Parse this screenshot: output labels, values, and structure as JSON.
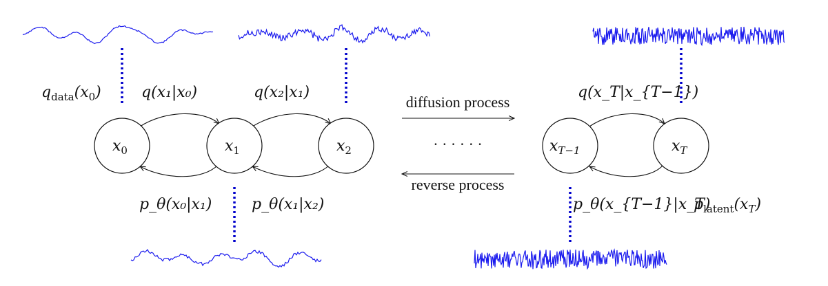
{
  "nodes": {
    "x0": {
      "base": "x",
      "sub": "0"
    },
    "x1": {
      "base": "x",
      "sub": "1"
    },
    "x2": {
      "base": "x",
      "sub": "2"
    },
    "xT1": {
      "base": "x",
      "sub": "T−1"
    },
    "xT": {
      "base": "x",
      "sub": "T"
    }
  },
  "labels": {
    "q_data": {
      "fn": "q",
      "sub": "data",
      "arg": "(x",
      "argsub": "0",
      "close": ")"
    },
    "q_x1_x0": "q(x₁|x₀)",
    "q_x2_x1": "q(x₂|x₁)",
    "q_xT_xT1": "q(x_T|x_{T−1})",
    "p_x0_x1": "p_θ(x₀|x₁)",
    "p_x1_x2": "p_θ(x₁|x₂)",
    "p_xT1_xT": "p_θ(x_{T−1}|x_T)",
    "p_latent": {
      "fn": "p",
      "sub": "latent",
      "arg": "(x",
      "argsub": "T",
      "close": ")"
    }
  },
  "process": {
    "forward_label": "diffusion process",
    "reverse_label": "reverse process",
    "ellipsis": "· · · · · ·"
  },
  "colors": {
    "signal": "#1a1aee",
    "connector": "#0000cc"
  }
}
